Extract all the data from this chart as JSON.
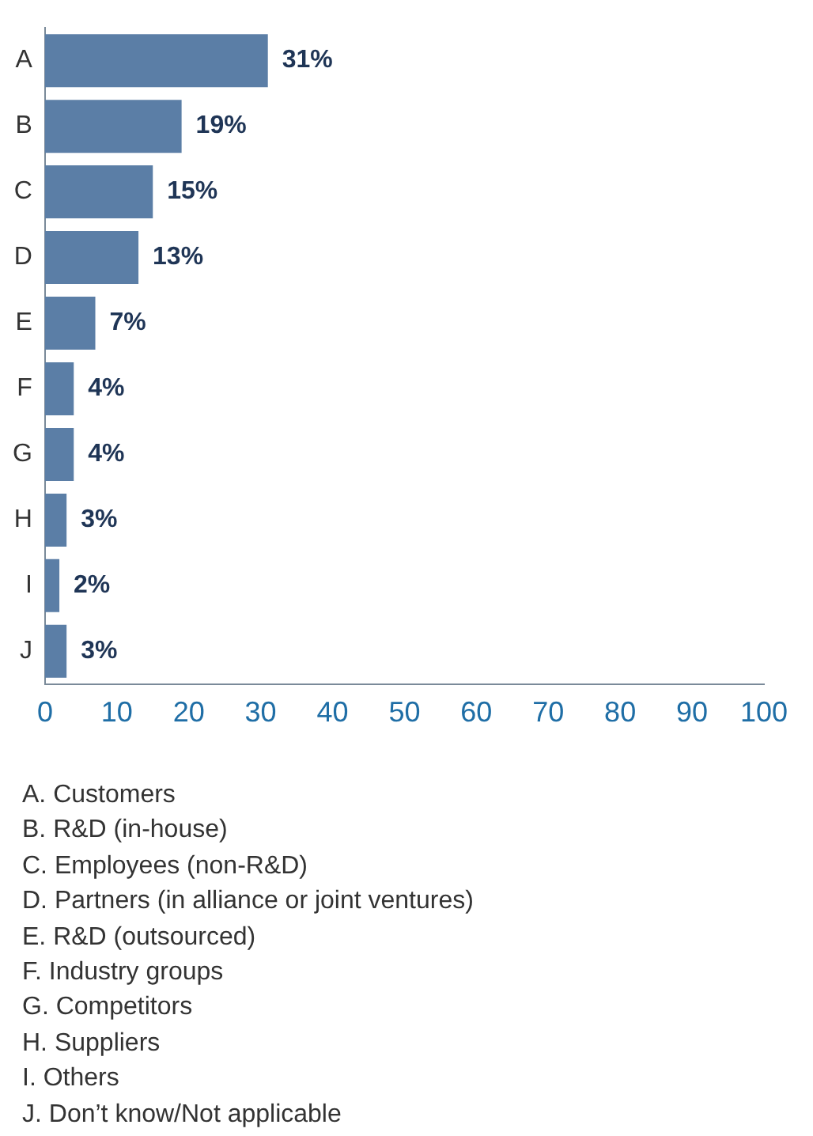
{
  "chart_data": {
    "type": "bar",
    "orientation": "horizontal",
    "categories": [
      "A",
      "B",
      "C",
      "D",
      "E",
      "F",
      "G",
      "H",
      "I",
      "J"
    ],
    "values": [
      31,
      19,
      15,
      13,
      7,
      4,
      4,
      3,
      2,
      3
    ],
    "value_labels": [
      "31%",
      "19%",
      "15%",
      "13%",
      "7%",
      "4%",
      "4%",
      "3%",
      "2%",
      "3%"
    ],
    "color": "#5b7ea6",
    "xlim": [
      0,
      100
    ],
    "xticks": [
      0,
      10,
      20,
      30,
      40,
      50,
      60,
      70,
      80,
      90,
      100
    ],
    "grid": false,
    "legend": false,
    "annotations": [
      "A.  Customers",
      "B.  R&D (in-house)",
      "C.  Employees (non-R&D)",
      "D.  Partners (in alliance or joint ventures)",
      "E.  R&D (outsourced)",
      "F.  Industry groups",
      "G. Competitors",
      "H.  Suppliers",
      "I.   Others",
      "J.  Don’t know/Not applicable"
    ]
  }
}
